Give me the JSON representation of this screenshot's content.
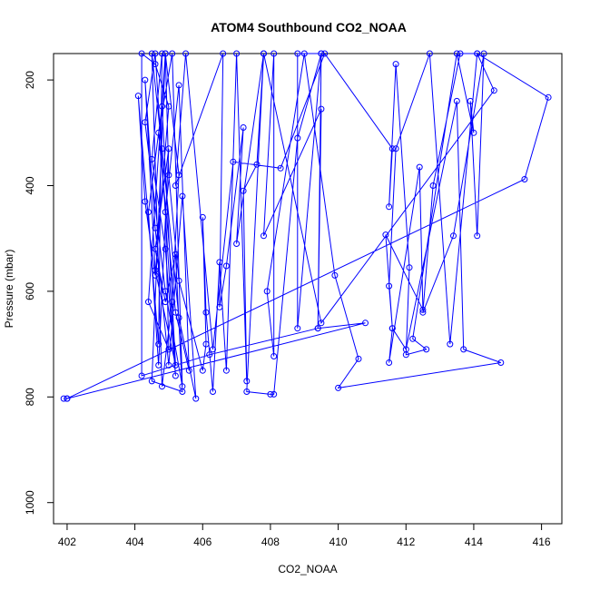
{
  "chart_data": {
    "type": "line",
    "title": "ATOM4 Southbound CO2_NOAA",
    "xlabel": "CO2_NOAA",
    "ylabel": "Pressure (mbar)",
    "xlim": [
      401.6,
      416.6
    ],
    "ylim": [
      1040,
      150
    ],
    "y_reversed": true,
    "x_ticks": [
      402,
      404,
      406,
      408,
      410,
      412,
      414,
      416
    ],
    "y_ticks": [
      200,
      400,
      600,
      800,
      1000
    ],
    "grid": false,
    "legend": "none",
    "series_color": "#0000ff",
    "series": [
      {
        "points": [
          [
            401.9,
            803
          ],
          [
            402.0,
            803
          ],
          [
            410.8,
            660
          ],
          [
            409.4,
            670
          ],
          [
            406.2,
            720
          ],
          [
            404.2,
            760
          ],
          [
            404.2,
            150
          ],
          [
            404.6,
            170
          ],
          [
            405.0,
            250
          ],
          [
            404.6,
            570
          ],
          [
            404.3,
            430
          ],
          [
            404.1,
            230
          ],
          [
            404.7,
            700
          ],
          [
            404.8,
            150
          ],
          [
            404.5,
            350
          ],
          [
            404.9,
            520
          ],
          [
            405.2,
            760
          ],
          [
            404.6,
            150
          ],
          [
            404.3,
            280
          ],
          [
            404.9,
            600
          ],
          [
            405.4,
            780
          ],
          [
            405.1,
            150
          ],
          [
            404.7,
            300
          ],
          [
            405.2,
            640
          ],
          [
            405.6,
            750
          ],
          [
            405.3,
            210
          ],
          [
            404.9,
            450
          ],
          [
            405.0,
            710
          ],
          [
            404.4,
            620
          ],
          [
            404.9,
            150
          ],
          [
            405.3,
            380
          ],
          [
            405.1,
            620
          ],
          [
            404.8,
            780
          ],
          [
            404.5,
            150
          ],
          [
            404.8,
            330
          ],
          [
            405.3,
            650
          ],
          [
            405.8,
            803
          ],
          [
            405.4,
            420
          ],
          [
            405.0,
            740
          ],
          [
            404.6,
            480
          ],
          [
            404.3,
            200
          ],
          [
            404.6,
            560
          ],
          [
            405.2,
            740
          ],
          [
            404.8,
            250
          ],
          [
            404.4,
            450
          ],
          [
            404.7,
            740
          ],
          [
            405.0,
            330
          ],
          [
            404.6,
            520
          ],
          [
            404.9,
            620
          ],
          [
            405.2,
            530
          ],
          [
            405.4,
            790
          ],
          [
            404.5,
            770
          ],
          [
            404.9,
            150
          ],
          [
            405.0,
            380
          ],
          [
            405.3,
            580
          ],
          [
            406.0,
            750
          ],
          [
            406.1,
            700
          ],
          [
            406.0,
            460
          ],
          [
            406.1,
            640
          ],
          [
            406.3,
            790
          ],
          [
            406.5,
            545
          ],
          [
            406.7,
            750
          ],
          [
            407.0,
            150
          ],
          [
            407.3,
            770
          ],
          [
            407.2,
            410
          ],
          [
            407.6,
            360
          ],
          [
            407.8,
            150
          ],
          [
            407.3,
            790
          ],
          [
            408.0,
            795
          ],
          [
            408.1,
            795
          ],
          [
            408.8,
            310
          ],
          [
            409.5,
            150
          ],
          [
            408.8,
            670
          ],
          [
            408.8,
            150
          ],
          [
            409.5,
            150
          ],
          [
            409.4,
            670
          ],
          [
            409.5,
            255
          ],
          [
            407.8,
            495
          ],
          [
            408.1,
            150
          ],
          [
            408.1,
            723
          ],
          [
            407.9,
            600
          ],
          [
            409.0,
            150
          ],
          [
            409.9,
            570
          ],
          [
            410.6,
            728
          ],
          [
            410.0,
            783
          ],
          [
            414.8,
            735
          ],
          [
            413.7,
            710
          ],
          [
            413.5,
            240
          ],
          [
            412.0,
            710
          ],
          [
            411.6,
            670
          ],
          [
            411.5,
            735
          ],
          [
            412.4,
            365
          ],
          [
            412.5,
            635
          ],
          [
            411.4,
            493
          ],
          [
            411.6,
            670
          ],
          [
            411.5,
            590
          ],
          [
            411.7,
            330
          ],
          [
            412.7,
            150
          ],
          [
            413.3,
            700
          ],
          [
            414.1,
            150
          ],
          [
            414.6,
            220
          ],
          [
            409.5,
            660
          ],
          [
            407.8,
            150
          ],
          [
            407.0,
            510
          ],
          [
            407.2,
            290
          ],
          [
            406.7,
            552
          ],
          [
            406.5,
            630
          ],
          [
            406.6,
            150
          ],
          [
            405.2,
            400
          ],
          [
            405.5,
            150
          ],
          [
            406.3,
            710
          ],
          [
            406.9,
            355
          ],
          [
            408.3,
            367
          ],
          [
            409.6,
            150
          ],
          [
            411.6,
            330
          ],
          [
            411.5,
            440
          ],
          [
            411.7,
            170
          ],
          [
            412.1,
            555
          ],
          [
            412.0,
            720
          ],
          [
            412.6,
            710
          ],
          [
            412.2,
            690
          ],
          [
            413.5,
            150
          ],
          [
            414.0,
            300
          ],
          [
            413.9,
            240
          ],
          [
            414.1,
            495
          ],
          [
            414.3,
            150
          ],
          [
            413.4,
            495
          ],
          [
            412.5,
            640
          ],
          [
            412.8,
            400
          ],
          [
            413.6,
            150
          ],
          [
            414.1,
            150
          ],
          [
            416.2,
            233
          ],
          [
            415.5,
            388
          ],
          [
            402.0,
            803
          ]
        ]
      }
    ]
  }
}
